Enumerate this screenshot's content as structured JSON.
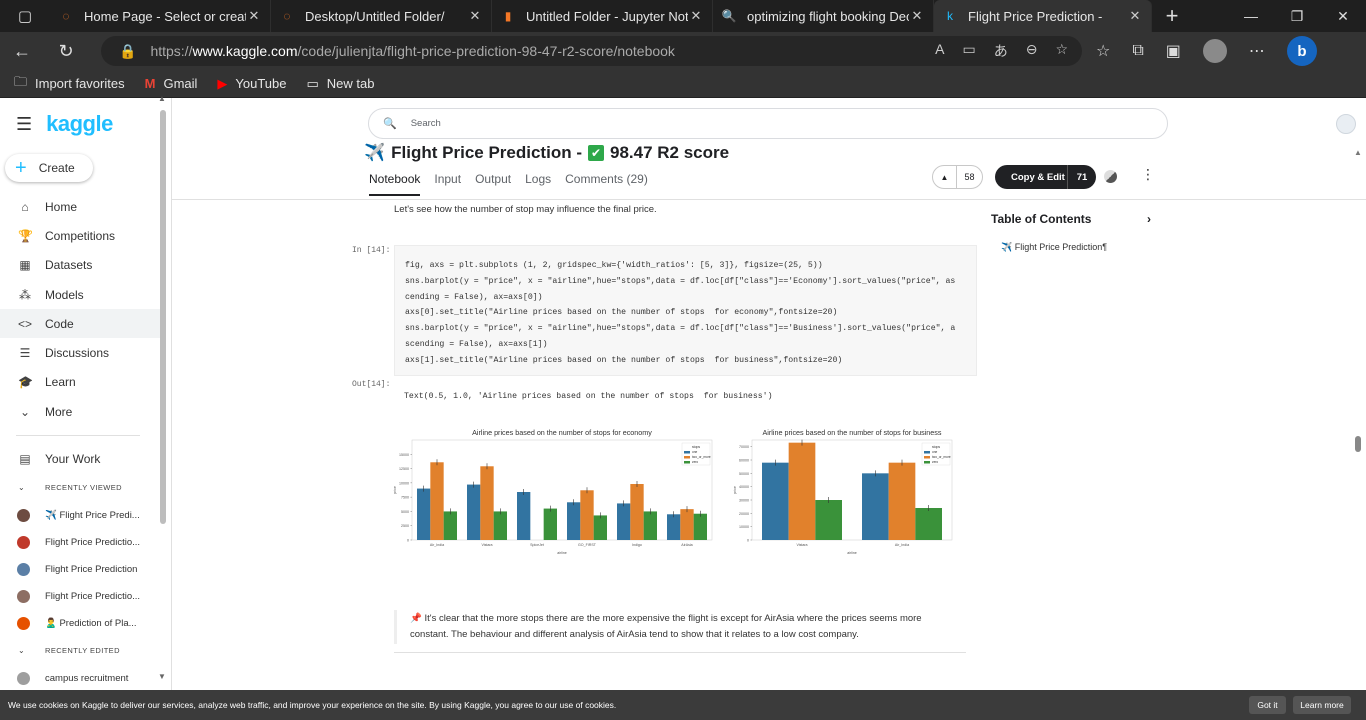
{
  "browser": {
    "tabs": [
      {
        "title": "Home Page - Select or create",
        "favicon": "jupyter-icon",
        "active": false
      },
      {
        "title": "Desktop/Untitled Folder/",
        "favicon": "jupyter-icon",
        "active": false
      },
      {
        "title": "Untitled Folder - Jupyter Note",
        "favicon": "notebook-icon",
        "active": false
      },
      {
        "title": "optimizing flight booking Dec",
        "favicon": "search-icon",
        "active": false
      },
      {
        "title": "Flight Price Prediction - ",
        "favicon": "kaggle-icon",
        "active": true
      }
    ],
    "url_prefix": "https://",
    "url_host": "www.kaggle.com",
    "url_path": "/code/julienjta/flight-price-prediction-98-47-r2-score/notebook",
    "bookmarks": [
      "Import favorites",
      "Gmail",
      "YouTube",
      "New tab"
    ]
  },
  "kaggle": {
    "logo": "kaggle",
    "create_label": "Create",
    "search_placeholder": "Search",
    "nav": [
      "Home",
      "Competitions",
      "Datasets",
      "Models",
      "Code",
      "Discussions",
      "Learn",
      "More"
    ],
    "active_nav": "Code",
    "your_work": "Your Work",
    "recently_viewed_label": "RECENTLY VIEWED",
    "recently_viewed": [
      {
        "label": "✈️ Flight Price Predi...",
        "color": "#6d4c41"
      },
      {
        "label": "Flight Price Predictio...",
        "color": "#c0392b"
      },
      {
        "label": "Flight Price Prediction",
        "color": "#5b7fa6"
      },
      {
        "label": "Flight Price Predictio...",
        "color": "#8d6e63"
      },
      {
        "label": "🙎‍♂️ Prediction of Pla...",
        "color": "#e65100"
      }
    ],
    "recently_edited_label": "RECENTLY EDITED",
    "recently_edited": [
      {
        "label": "campus recruitment",
        "color": "#9e9e9e"
      }
    ]
  },
  "notebook": {
    "title_emoji": "✈️",
    "title_text": "Flight Price Prediction - ",
    "title_check": "✔",
    "title_score": "98.47 R2 score",
    "tabs": [
      "Notebook",
      "Input",
      "Output",
      "Logs",
      "Comments (29)"
    ],
    "active_tab": "Notebook",
    "vote_count": "58",
    "copy_edit_label": "Copy & Edit",
    "copy_edit_count": "71",
    "intro_text": "Let's see how the number of stop may influence the final price.",
    "in_label": "In [14]:",
    "out_label": "Out[14]:",
    "code_lines": [
      "fig, axs = plt.subplots (1, 2, gridspec_kw={'width_ratios': [5, 3]}, figsize=(25, 5))",
      "sns.barplot(y = \"price\", x = \"airline\",hue=\"stops\",data = df.loc[df[\"class\"]=='Economy'].sort_values(\"price\", as",
      "cending = False), ax=axs[0])",
      "axs[0].set_title(\"Airline prices based on the number of stops  for economy\",fontsize=20)",
      "sns.barplot(y = \"price\", x = \"airline\",hue=\"stops\",data = df.loc[df[\"class\"]=='Business'].sort_values(\"price\", a",
      "scending = False), ax=axs[1])",
      "axs[1].set_title(\"Airline prices based on the number of stops  for business\",fontsize=20)"
    ],
    "output_text": "Text(0.5, 1.0, 'Airline prices based on the number of stops  for business')",
    "note_emoji": "📌",
    "note_text": "It's clear that the more stops there are the more expensive the flight is except for AirAsia where the prices seems more constant. The behaviour and different analysis of AirAsia tend to show that it relates to a low cost company.",
    "toc_title": "Table of Contents",
    "toc_items": [
      "✈️ Flight Price Prediction¶"
    ]
  },
  "chart_data": [
    {
      "type": "bar",
      "title": "Airline prices based on the number of stops  for economy",
      "xlabel": "airline",
      "ylabel": "price",
      "categories": [
        "Air_India",
        "Vistara",
        "SpiceJet",
        "GO_FIRST",
        "Indigo",
        "AirAsia"
      ],
      "ylim": [
        0,
        17500
      ],
      "yticks": [
        0,
        2500,
        5000,
        7500,
        10000,
        12500,
        15000
      ],
      "legend_title": "stops",
      "legend_position": "top-right",
      "series": [
        {
          "name": "one",
          "color": "#3274a1",
          "values": [
            9000,
            9700,
            8400,
            6600,
            6400,
            4500
          ]
        },
        {
          "name": "two_or_more",
          "color": "#e1812c",
          "values": [
            13600,
            12900,
            0,
            8700,
            9800,
            5400
          ]
        },
        {
          "name": "zero",
          "color": "#3a923a",
          "values": [
            5000,
            5000,
            5500,
            4300,
            5000,
            4600
          ]
        }
      ]
    },
    {
      "type": "bar",
      "title": "Airline prices based on the number of stops  for business",
      "xlabel": "airline",
      "ylabel": "price",
      "categories": [
        "Vistara",
        "Air_India"
      ],
      "ylim": [
        0,
        75000
      ],
      "yticks": [
        0,
        10000,
        20000,
        30000,
        40000,
        50000,
        60000,
        70000
      ],
      "legend_title": "stops",
      "legend_position": "top-right",
      "series": [
        {
          "name": "one",
          "color": "#3274a1",
          "values": [
            58000,
            50000
          ]
        },
        {
          "name": "two_or_more",
          "color": "#e1812c",
          "values": [
            73000,
            58000
          ]
        },
        {
          "name": "zero",
          "color": "#3a923a",
          "values": [
            30000,
            24000
          ]
        }
      ]
    }
  ],
  "cookie": {
    "text": "We use cookies on Kaggle to deliver our services, analyze web traffic, and improve your experience on the site. By using Kaggle, you agree to our use of cookies.",
    "got_it": "Got it",
    "learn_more": "Learn more"
  }
}
